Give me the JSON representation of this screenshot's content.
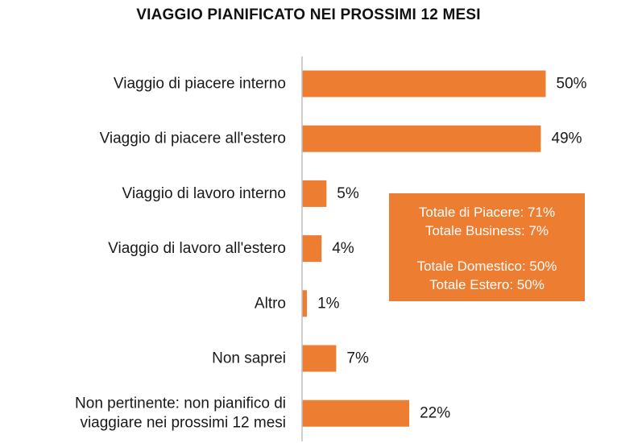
{
  "colors": {
    "bar": "#ED7D31",
    "axis": "#BFBFBF",
    "callout_background": "#ED7D31",
    "callout_text": "#FFFFFF"
  },
  "chart_data": {
    "type": "bar",
    "orientation": "horizontal",
    "title": "VIAGGIO PIANIFICATO NEI PROSSIMI 12 MESI",
    "categories": [
      [
        "Viaggio di piacere interno"
      ],
      [
        "Viaggio di piacere all'estero"
      ],
      [
        "Viaggio di lavoro interno"
      ],
      [
        "Viaggio di lavoro all'estero"
      ],
      [
        "Altro"
      ],
      [
        "Non saprei"
      ],
      [
        "Non pertinente: non pianifico di",
        "viaggiare nei prossimi 12 mesi"
      ]
    ],
    "values": [
      50,
      49,
      5,
      4,
      1,
      7,
      22
    ],
    "value_labels": [
      "50%",
      "49%",
      "5%",
      "4%",
      "1%",
      "7%",
      "22%"
    ],
    "xlim": [
      0,
      100
    ],
    "grid": false,
    "legend": "none"
  },
  "callout": {
    "lines": [
      "Totale di Piacere: 71%",
      "Totale Business: 7%",
      "Totale Domestico: 50%",
      "Totale Estero: 50%"
    ]
  }
}
